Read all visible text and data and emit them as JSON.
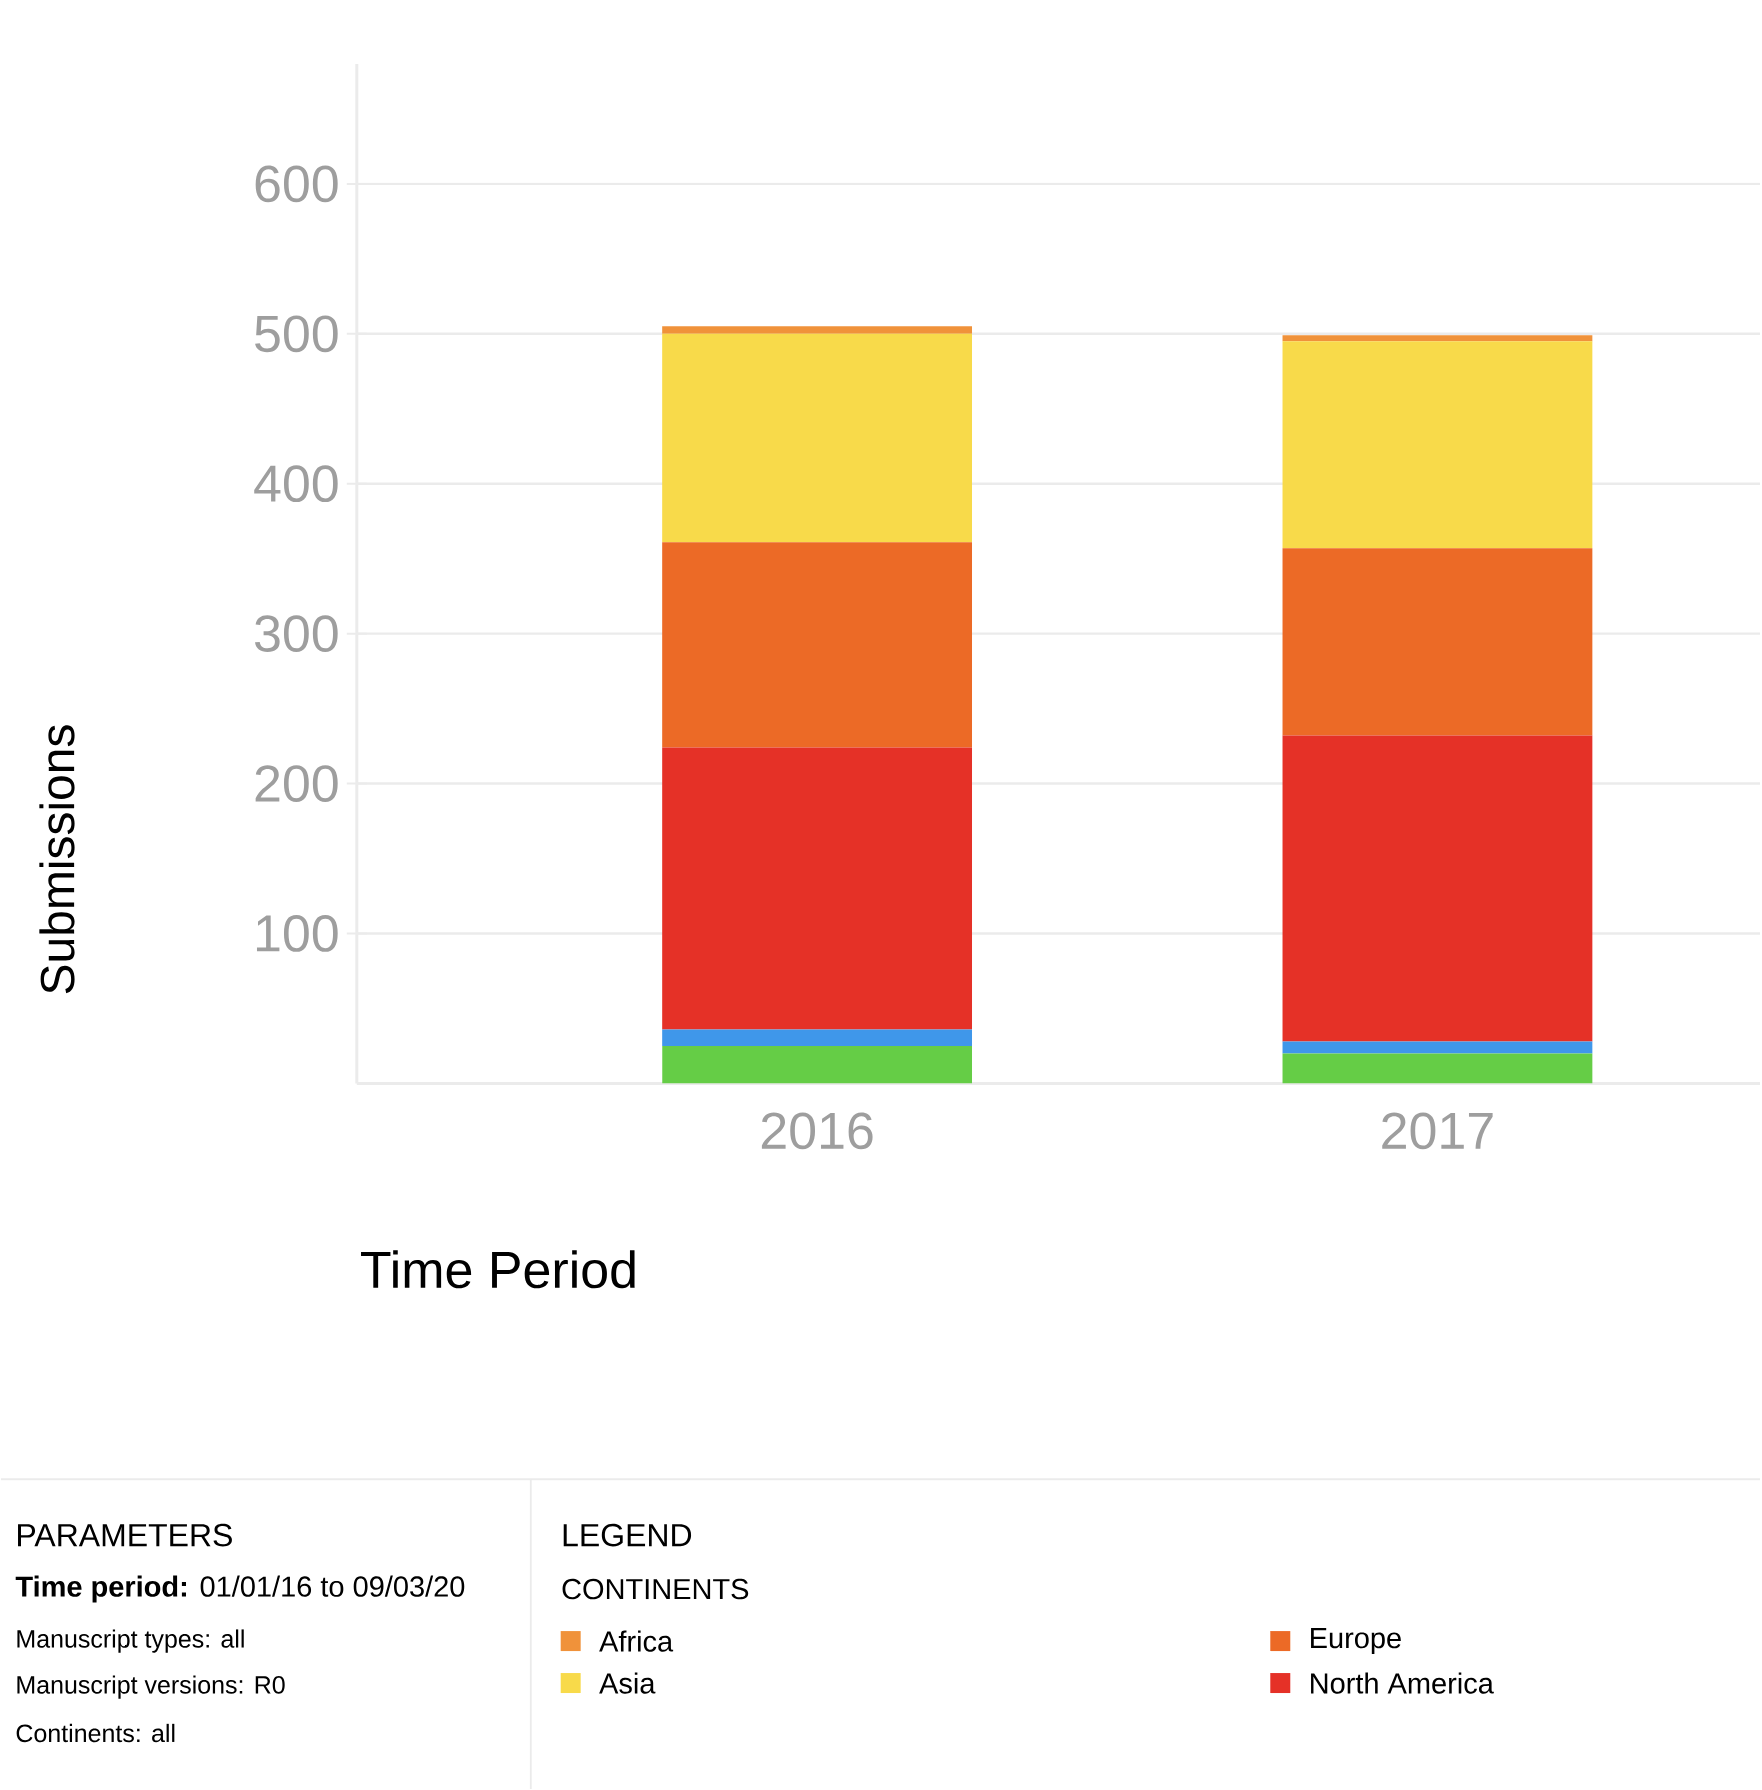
{
  "chart_data": {
    "type": "bar",
    "stacked": true,
    "ylabel": "Submissions",
    "xlabel": "Time Period",
    "categories": [
      "2016",
      "2017"
    ],
    "series": [
      {
        "color": "#65cd46",
        "values": [
          25,
          20
        ]
      },
      {
        "color": "#3f97ea",
        "values": [
          11,
          8
        ]
      },
      {
        "name": "North America",
        "color": "#e53127",
        "values": [
          188,
          204
        ]
      },
      {
        "name": "Europe",
        "color": "#ec6a26",
        "values": [
          137,
          125
        ]
      },
      {
        "name": "Asia",
        "color": "#f8da4a",
        "values": [
          139,
          138
        ]
      },
      {
        "name": "Africa",
        "color": "#f0923a",
        "values": [
          5,
          4
        ]
      }
    ],
    "ylim": [
      0,
      680
    ],
    "yticks": [
      100,
      200,
      300,
      400,
      500,
      600
    ],
    "grid": "y",
    "legend": "bottom",
    "legend_title": "CONTINENTS",
    "annotations": [
      "PARAMETERS",
      "**Time period:** 01/01/16 to 09/03/20",
      "Manuscript types: all",
      "Manuscript versions: R0",
      "Continents: all",
      "LEGEND"
    ]
  }
}
